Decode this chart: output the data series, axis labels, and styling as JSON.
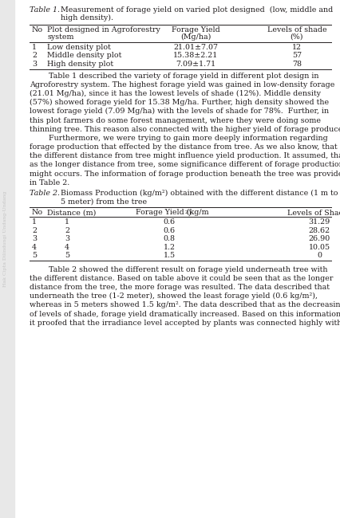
{
  "title1_bold": "Table 1.",
  "title1_rest_line1": "Measurement of forage yield on varied plot designed  (low, middle and",
  "title1_rest_line2": "high density).",
  "table1_col_headers": [
    [
      "No",
      "Plot designed in Agroforestry",
      "system"
    ],
    [
      "Forage Yield",
      "(Mg/ha)"
    ],
    [
      "Levels of shade",
      "(%)"
    ]
  ],
  "table1_rows": [
    [
      "1",
      "Low density plot",
      "21.01±7.07",
      "12"
    ],
    [
      "2",
      "Middle density plot",
      "15.38±2.21",
      "57"
    ],
    [
      "3",
      "High density plot",
      "7.09±1.71",
      "78"
    ]
  ],
  "paragraph1_lines": [
    "        Table 1 described the variety of forage yield in different plot design in",
    "Agroforestry system. The highest forage yield was gained in low-density forage",
    "(21.01 Mg/ha), since it has the lowest levels of shade (12%). Middle density",
    "(57%) showed forage yield for 15.38 Mg/ha. Further, high density showed the",
    "lowest forage yield (7.09 Mg/ha) with the levels of shade for 78%.  Further, in",
    "this plot farmers do some forest management, where they were doing some",
    "thinning tree. This reason also connected with the higher yield of forage produced.",
    "        Furthermore, we were trying to gain more deeply information regarding",
    "forage production that effected by the distance from tree. As we also know, that",
    "the different distance from tree might influence yield production. It assumed, that",
    "as the longer distance from tree, some significance different of forage production",
    "might occurs. The information of forage production beneath the tree was provided",
    "in Table 2."
  ],
  "title2_bold": "Table 2.",
  "title2_rest_line1": "Biomass Production (kg/m²) obtained with the different distance (1 m to",
  "title2_rest_line2": "5 meter) from the tree",
  "table2_col_headers": [
    "No",
    "Distance (m)",
    "Forage Yield (kg/m²)",
    "Levels of Shade (%)"
  ],
  "table2_rows": [
    [
      "1",
      "1",
      "0.6",
      "31.29"
    ],
    [
      "2",
      "2",
      "0.6",
      "28.62"
    ],
    [
      "3",
      "3",
      "0.8",
      "26.90"
    ],
    [
      "4",
      "4",
      "1.2",
      "10.05"
    ],
    [
      "5",
      "5",
      "1.5",
      "0"
    ]
  ],
  "paragraph2_lines": [
    "        Table 2 showed the different result on forage yield underneath tree with",
    "the different distance. Based on table above it could be seen that as the longer",
    "distance from the tree, the more forage was resulted. The data described that",
    "underneath the tree (1-2 meter), showed the least forage yield (0.6 kg/m²),",
    "whereas in 5 meters showed 1.5 kg/m². The data described that as the decreasing",
    "of levels of shade, forage yield dramatically increased. Based on this information,",
    "it proofed that the irradiance level accepted by plants was connected highly with"
  ],
  "bg_color": "#ffffff",
  "text_color": "#231f20",
  "line_color": "#231f20",
  "font_size": 6.8,
  "title_indent": 38,
  "title2_indent": 38,
  "watermark_text": "Hak Cipta Dilindungi Undang-Undang",
  "watermark_color": "#aaaaaa"
}
